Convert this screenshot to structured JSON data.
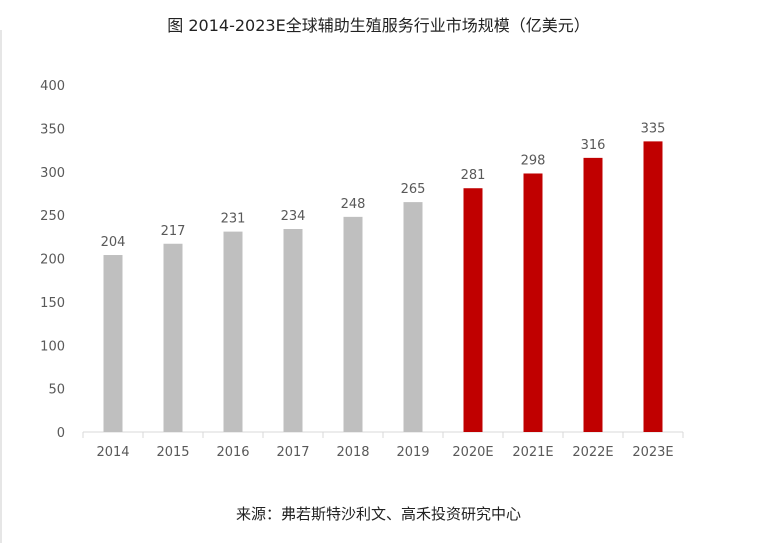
{
  "chart_data": {
    "type": "bar",
    "title": "图 2014-2023E全球辅助生殖服务行业市场规模（亿美元）",
    "categories": [
      "2014",
      "2015",
      "2016",
      "2017",
      "2018",
      "2019",
      "2020E",
      "2021E",
      "2022E",
      "2023E"
    ],
    "values": [
      204,
      217,
      231,
      234,
      248,
      265,
      281,
      298,
      316,
      335
    ],
    "data_labels": [
      "204",
      "217",
      "231",
      "234",
      "248",
      "265",
      "281",
      "298",
      "316",
      "335"
    ],
    "ylim": [
      0,
      400
    ],
    "yticks": [
      0,
      50,
      100,
      150,
      200,
      250,
      300,
      350,
      400
    ],
    "ytick_labels": [
      "0",
      "50",
      "100",
      "150",
      "200",
      "250",
      "300",
      "350",
      "400"
    ],
    "grid": false,
    "colors": {
      "historical": "#bfbfbf",
      "forecast": "#c00000",
      "axis": "#d9d9d9",
      "text": "#595959"
    },
    "forecast_from_index": 6
  },
  "source": "来源：弗若斯特沙利文、高禾投资研究中心"
}
